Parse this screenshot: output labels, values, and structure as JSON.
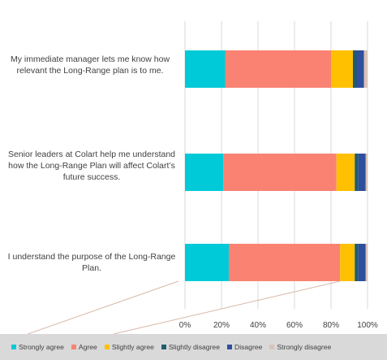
{
  "chart_data": {
    "type": "bar",
    "orientation": "horizontal",
    "stacked": true,
    "title": "",
    "xlabel": "",
    "ylabel": "",
    "xlim": [
      0,
      100
    ],
    "x_tick_labels": [
      "0%",
      "20%",
      "40%",
      "60%",
      "80%",
      "100%"
    ],
    "grid": "vertical",
    "legend_position": "bottom",
    "categories": [
      "My immediate manager lets me know how relevant the Long-Range plan is to me.",
      "Senior leaders at Colart help me understand how the Long-Range Plan will affect Colart’s future success.",
      "I understand the purpose of the Long-Range Plan."
    ],
    "series": [
      {
        "name": "Strongly agree",
        "color": "#00cad8",
        "values": [
          22,
          21,
          24
        ]
      },
      {
        "name": "Agree",
        "color": "#fa8272",
        "values": [
          58,
          62,
          61
        ]
      },
      {
        "name": "Slightly agree",
        "color": "#ffc000",
        "values": [
          12,
          10,
          8
        ]
      },
      {
        "name": "Slightly disagree",
        "color": "#1f5c6e",
        "values": [
          2,
          2,
          2
        ]
      },
      {
        "name": "Disagree",
        "color": "#2e4e9e",
        "values": [
          4,
          4,
          4
        ]
      },
      {
        "name": "Strongly disagree",
        "color": "#d9c3b7",
        "values": [
          2,
          1,
          1
        ]
      }
    ]
  }
}
